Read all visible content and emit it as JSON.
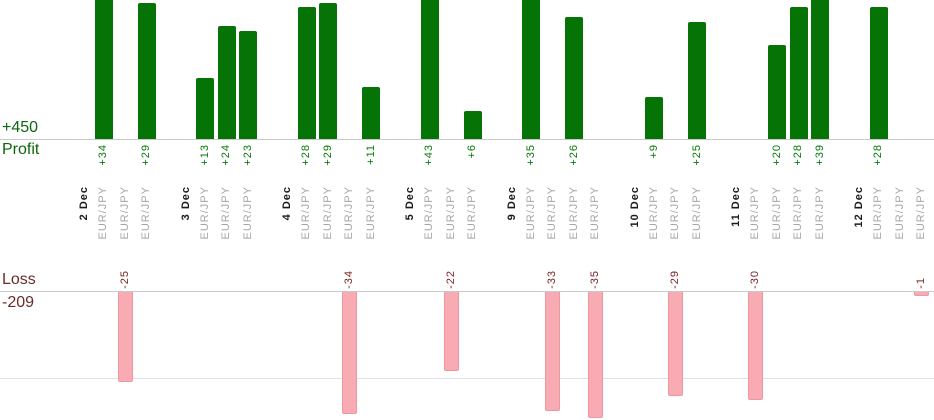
{
  "axis": {
    "profit_total": "+450",
    "profit_label": "Profit",
    "loss_label": "Loss",
    "loss_total": "-209"
  },
  "colors": {
    "profit_bar": "#067306",
    "profit_value_text": "#0b7a0b",
    "profit_axis_text": "#0d660d",
    "loss_bar_fill": "#f9abb4",
    "loss_bar_border": "#ef96a1",
    "loss_value_text": "#7a2525",
    "loss_axis_text": "#6b2b2b",
    "symbol_text": "#a6a6a6",
    "date_text": "#1c1c1c",
    "axis_line": "#c9c9c9",
    "grid_line": "#e3e3e3"
  },
  "chart_data": {
    "type": "bar",
    "positive_axis_label": "Profit",
    "negative_axis_label": "Loss",
    "total_profit": 450,
    "total_loss": -209,
    "groups": [
      {
        "date": "2 Dec",
        "trades": [
          {
            "symbol": "EUR/JPY",
            "value": 34
          },
          {
            "symbol": "EUR/JPY",
            "value": -25
          },
          {
            "symbol": "EUR/JPY",
            "value": 29
          }
        ]
      },
      {
        "date": "3 Dec",
        "trades": [
          {
            "symbol": "EUR/JPY",
            "value": 13
          },
          {
            "symbol": "EUR/JPY",
            "value": 24
          },
          {
            "symbol": "EUR/JPY",
            "value": 23
          }
        ]
      },
      {
        "date": "4 Dec",
        "trades": [
          {
            "symbol": "EUR/JPY",
            "value": 28
          },
          {
            "symbol": "EUR/JPY",
            "value": 29
          },
          {
            "symbol": "EUR/JPY",
            "value": -34
          },
          {
            "symbol": "EUR/JPY",
            "value": 11
          }
        ]
      },
      {
        "date": "5 Dec",
        "trades": [
          {
            "symbol": "EUR/JPY",
            "value": 43
          },
          {
            "symbol": "EUR/JPY",
            "value": -22
          },
          {
            "symbol": "EUR/JPY",
            "value": 6
          }
        ]
      },
      {
        "date": "9 Dec",
        "trades": [
          {
            "symbol": "EUR/JPY",
            "value": 35
          },
          {
            "symbol": "EUR/JPY",
            "value": -33
          },
          {
            "symbol": "EUR/JPY",
            "value": 26
          },
          {
            "symbol": "EUR/JPY",
            "value": -35
          }
        ]
      },
      {
        "date": "10 Dec",
        "trades": [
          {
            "symbol": "EUR/JPY",
            "value": 9
          },
          {
            "symbol": "EUR/JPY",
            "value": -29
          },
          {
            "symbol": "EUR/JPY",
            "value": 25
          }
        ]
      },
      {
        "date": "11 Dec",
        "trades": [
          {
            "symbol": "EUR/JPY",
            "value": -30
          },
          {
            "symbol": "EUR/JPY",
            "value": 20
          },
          {
            "symbol": "EUR/JPY",
            "value": 28
          },
          {
            "symbol": "EUR/JPY",
            "value": 39
          }
        ]
      },
      {
        "date": "12 Dec",
        "trades": [
          {
            "symbol": "EUR/JPY",
            "value": 28
          },
          {
            "symbol": "EUR/JPY",
            "value": null
          },
          {
            "symbol": "EUR/JPY",
            "value": -1
          }
        ]
      }
    ]
  }
}
